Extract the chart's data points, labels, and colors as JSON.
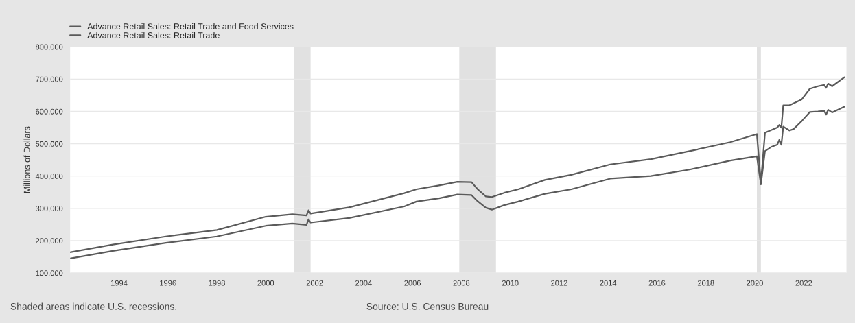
{
  "chart_data": {
    "type": "line",
    "ylabel": "Millions of Dollars",
    "x": [
      "1992-01",
      "1993-10",
      "1995-12",
      "1998-01",
      "2000-01",
      "2001-02",
      "2001-09",
      "2001-10",
      "2001-11",
      "2003-06",
      "2005-09",
      "2006-03",
      "2007-02",
      "2007-11",
      "2008-06",
      "2008-09",
      "2009-01",
      "2009-04",
      "2009-10",
      "2010-05",
      "2011-06",
      "2012-07",
      "2014-02",
      "2015-10",
      "2017-05",
      "2019-01",
      "2020-02",
      "2020-04",
      "2020-06",
      "2020-09",
      "2020-12",
      "2021-01",
      "2021-02",
      "2021-03",
      "2021-06",
      "2021-08",
      "2021-12",
      "2022-04",
      "2022-08",
      "2022-11",
      "2022-12",
      "2023-01",
      "2023-03",
      "2023-09"
    ],
    "series": [
      {
        "name": "Advance Retail Sales: Retail Trade and Food Services",
        "color": "#5a5a5a",
        "values": [
          164000,
          188000,
          213000,
          233000,
          274000,
          282000,
          278000,
          294000,
          284000,
          303000,
          347000,
          359000,
          371000,
          382000,
          381000,
          359000,
          337000,
          335000,
          348000,
          359000,
          388000,
          404000,
          436000,
          452000,
          477000,
          505000,
          530000,
          380000,
          534000,
          542000,
          550000,
          558000,
          550000,
          619000,
          619000,
          625000,
          637000,
          670000,
          678000,
          682000,
          673000,
          686000,
          678000,
          706000
        ]
      },
      {
        "name": "Advance Retail Sales: Retail Trade",
        "color": "#5a5a5a",
        "values": [
          145000,
          168000,
          193000,
          213000,
          246000,
          253000,
          249000,
          266000,
          256000,
          270000,
          306000,
          321000,
          331000,
          343000,
          341000,
          322000,
          302000,
          296000,
          310000,
          321000,
          345000,
          359000,
          392000,
          400000,
          420000,
          448000,
          461000,
          374000,
          477000,
          490000,
          497000,
          512000,
          497000,
          553000,
          541000,
          545000,
          570000,
          598000,
          600000,
          602000,
          590000,
          605000,
          597000,
          615000
        ]
      }
    ],
    "xlim": [
      "1992-01",
      "2023-10"
    ],
    "xticks": [
      "1994",
      "1996",
      "1998",
      "2000",
      "2002",
      "2004",
      "2006",
      "2008",
      "2010",
      "2012",
      "2014",
      "2016",
      "2018",
      "2020",
      "2022"
    ],
    "ylim": [
      100000,
      800000
    ],
    "yticks": [
      {
        "value": 100000,
        "label": "100,000"
      },
      {
        "value": 200000,
        "label": "200,000"
      },
      {
        "value": 300000,
        "label": "300,000"
      },
      {
        "value": 400000,
        "label": "400,000"
      },
      {
        "value": 500000,
        "label": "500,000"
      },
      {
        "value": 600000,
        "label": "600,000"
      },
      {
        "value": 700000,
        "label": "700,000"
      },
      {
        "value": 800000,
        "label": "800,000"
      }
    ],
    "bands": [
      {
        "axis": "x",
        "from": "2001-03",
        "to": "2001-11",
        "color": "#e1e1e1"
      },
      {
        "axis": "x",
        "from": "2007-12",
        "to": "2009-06",
        "color": "#e1e1e1"
      },
      {
        "axis": "x",
        "from": "2020-02",
        "to": "2020-04",
        "color": "#e1e1e1"
      }
    ],
    "grid": "y",
    "legend": "top left",
    "line_style": "solid",
    "annotations": [
      "Shaded areas indicate U.S. recessions.",
      "Source: U.S. Census Bureau"
    ]
  }
}
